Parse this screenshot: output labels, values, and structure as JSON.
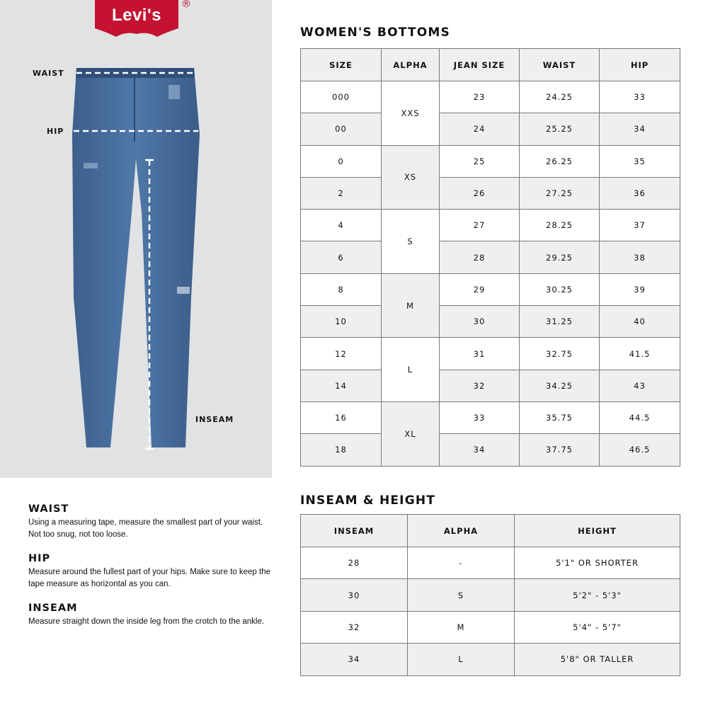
{
  "brand": {
    "logo_text": "Levi's",
    "registered_mark": "®",
    "color": "#c41230"
  },
  "figure_labels": {
    "waist": "WAIST",
    "hip": "HIP",
    "inseam": "INSEAM"
  },
  "womens_bottoms": {
    "title": "WOMEN'S BOTTOMS",
    "headers": [
      "SIZE",
      "ALPHA",
      "JEAN SIZE",
      "WAIST",
      "HIP"
    ],
    "groups": [
      {
        "alpha": "XXS",
        "rows": [
          [
            "000",
            "23",
            "24.25",
            "33"
          ],
          [
            "00",
            "24",
            "25.25",
            "34"
          ]
        ]
      },
      {
        "alpha": "XS",
        "rows": [
          [
            "0",
            "25",
            "26.25",
            "35"
          ],
          [
            "2",
            "26",
            "27.25",
            "36"
          ]
        ]
      },
      {
        "alpha": "S",
        "rows": [
          [
            "4",
            "27",
            "28.25",
            "37"
          ],
          [
            "6",
            "28",
            "29.25",
            "38"
          ]
        ]
      },
      {
        "alpha": "M",
        "rows": [
          [
            "8",
            "29",
            "30.25",
            "39"
          ],
          [
            "10",
            "30",
            "31.25",
            "40"
          ]
        ]
      },
      {
        "alpha": "L",
        "rows": [
          [
            "12",
            "31",
            "32.75",
            "41.5"
          ],
          [
            "14",
            "32",
            "34.25",
            "43"
          ]
        ]
      },
      {
        "alpha": "XL",
        "rows": [
          [
            "16",
            "33",
            "35.75",
            "44.5"
          ],
          [
            "18",
            "34",
            "37.75",
            "46.5"
          ]
        ]
      }
    ]
  },
  "inseam_height": {
    "title": "INSEAM & HEIGHT",
    "headers": [
      "INSEAM",
      "ALPHA",
      "HEIGHT"
    ],
    "rows": [
      [
        "28",
        "-",
        "5'1\" OR SHORTER"
      ],
      [
        "30",
        "S",
        "5'2\" - 5'3\""
      ],
      [
        "32",
        "M",
        "5'4\" - 5'7\""
      ],
      [
        "34",
        "L",
        "5'8\" OR TALLER"
      ]
    ]
  },
  "instructions": [
    {
      "title": "WAIST",
      "text": "Using a measuring tape, measure the smallest part of your waist. Not too snug, not too loose."
    },
    {
      "title": "HIP",
      "text": "Measure around the fullest part of your hips. Make sure to keep the tape measure as horizontal as you can."
    },
    {
      "title": "INSEAM",
      "text": "Measure straight down the inside leg from the crotch to the ankle."
    }
  ]
}
